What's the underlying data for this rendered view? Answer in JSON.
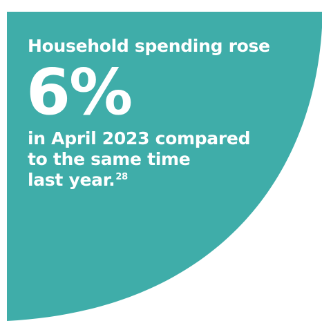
{
  "colors": {
    "background": "#ffffff",
    "panel": "#3fada9",
    "text": "#ffffff"
  },
  "headline": "Household spending rose",
  "stat_value": "6%",
  "detail_lines": [
    "in April 2023 compared",
    "to the same time",
    "last year."
  ],
  "footnote_ref": "28"
}
